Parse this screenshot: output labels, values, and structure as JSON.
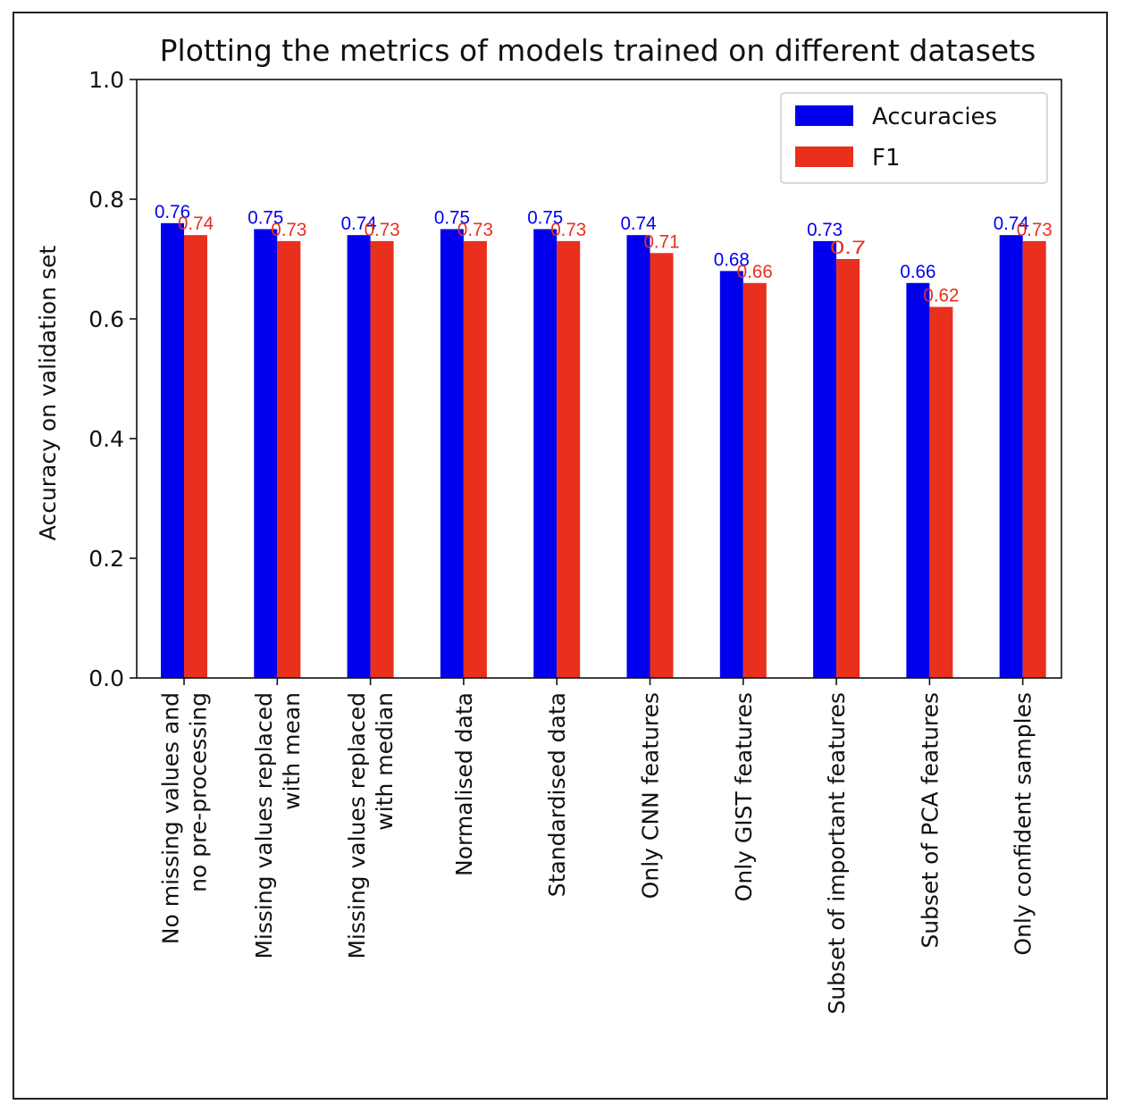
{
  "chart_data": {
    "type": "bar",
    "title": "Plotting the metrics of models trained on different datasets",
    "xlabel": "",
    "ylabel": "Accuracy on validation set",
    "ylim": [
      0,
      1.0
    ],
    "yticks": [
      "0.0",
      "0.2",
      "0.4",
      "0.6",
      "0.8",
      "1.0"
    ],
    "grid": false,
    "legend_position": "top-right",
    "categories": [
      [
        "No missing values and",
        "no pre-processing"
      ],
      [
        "Missing values replaced",
        "with mean"
      ],
      [
        "Missing values replaced",
        "with median"
      ],
      [
        "Normalised data"
      ],
      [
        "Standardised data"
      ],
      [
        "Only CNN features"
      ],
      [
        "Only GIST features"
      ],
      [
        "Subset of important features"
      ],
      [
        "Subset of PCA features"
      ],
      [
        "Only confident samples"
      ]
    ],
    "series": [
      {
        "name": "Accuracies",
        "color": "#0000ee",
        "values": [
          0.76,
          0.75,
          0.74,
          0.75,
          0.75,
          0.74,
          0.68,
          0.73,
          0.66,
          0.74
        ],
        "labels": [
          "0.76",
          "0.75",
          "0.74",
          "0.75",
          "0.75",
          "0.74",
          "0.68",
          "0.73",
          "0.66",
          "0.74"
        ]
      },
      {
        "name": "F1",
        "color": "#e8301c",
        "values": [
          0.74,
          0.73,
          0.73,
          0.73,
          0.73,
          0.71,
          0.66,
          0.7,
          0.62,
          0.73
        ],
        "labels": [
          "0.74",
          "0.73",
          "0.73",
          "0.73",
          "0.73",
          "0.71",
          "0.66",
          "0.7",
          "0.62",
          "0.73"
        ]
      }
    ]
  }
}
